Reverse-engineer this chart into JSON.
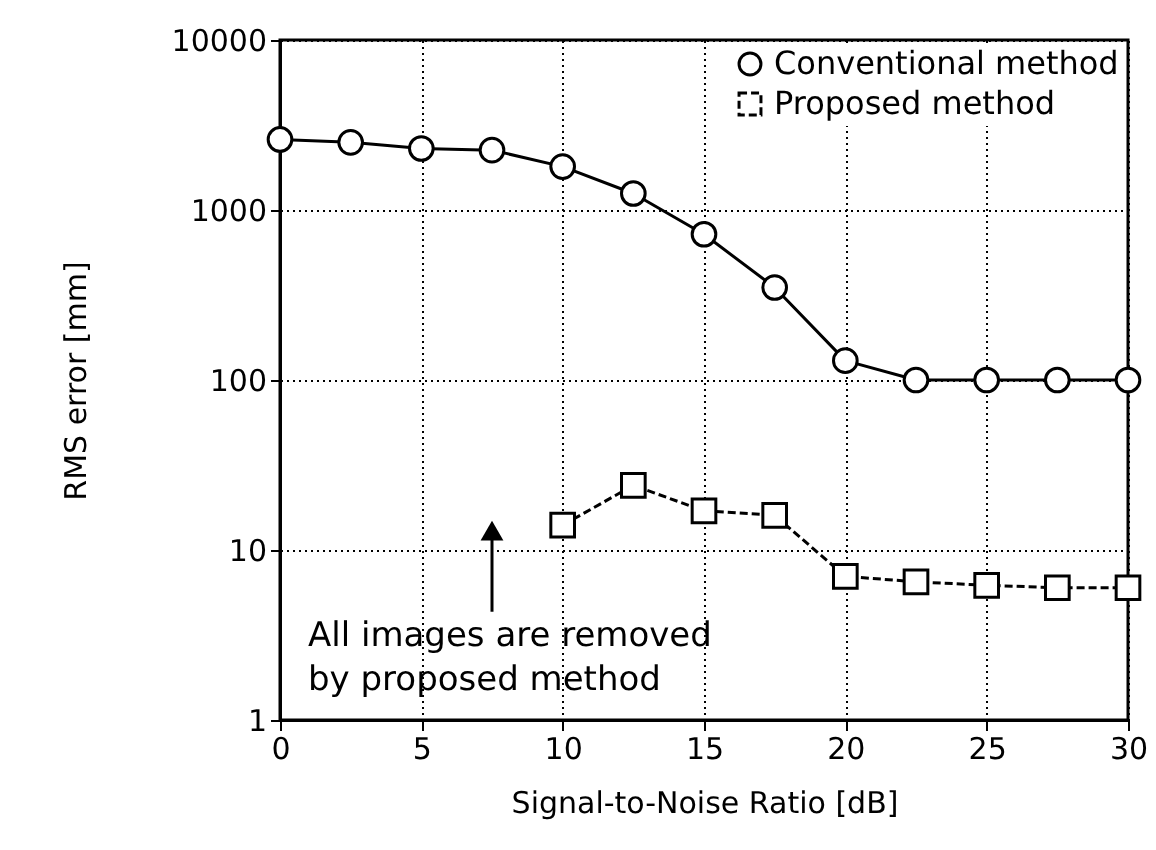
{
  "chart_data": {
    "type": "line",
    "xlabel": "Signal-to-Noise Ratio [dB]",
    "ylabel": "RMS error [mm]",
    "x": [
      0,
      2.5,
      5,
      7.5,
      10,
      12.5,
      15,
      17.5,
      20,
      22.5,
      25,
      27.5,
      30
    ],
    "series": [
      {
        "name": "Conventional method",
        "color": "#000000",
        "marker": "circle",
        "line_style": "solid",
        "values": [
          2600,
          2500,
          2300,
          2250,
          1800,
          1250,
          720,
          350,
          130,
          100,
          100,
          100,
          100
        ]
      },
      {
        "name": "Proposed method",
        "color": "#000000",
        "marker": "square",
        "line_style": "dashed",
        "values": [
          null,
          null,
          null,
          null,
          14,
          24,
          17,
          16,
          7,
          6.5,
          6.2,
          6,
          6
        ]
      }
    ],
    "log": "y",
    "xlim": [
      0,
      30
    ],
    "xticks": [
      0,
      5,
      10,
      15,
      20,
      25,
      30
    ],
    "ylim": [
      1,
      10000
    ],
    "yticks": [
      1,
      10,
      100,
      1000,
      10000
    ],
    "grid": true,
    "legend": "top right",
    "annotations": [
      {
        "text": "All images are removed\nby proposed method",
        "x": 7.5,
        "y": 13
      }
    ]
  }
}
